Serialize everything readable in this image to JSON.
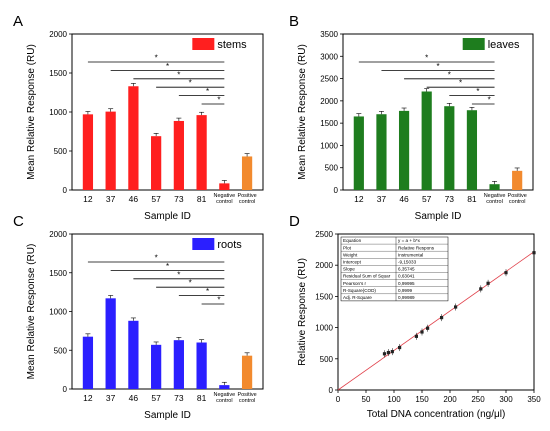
{
  "chart_data": [
    {
      "panel": "A",
      "type": "bar",
      "legend_label": "stems",
      "legend_color": "#ff1f1f",
      "bar_color": "#ff1f1f",
      "control_color": "#f28a2e",
      "categories": [
        "12",
        "37",
        "46",
        "57",
        "73",
        "81",
        "Negative control",
        "Positive control"
      ],
      "values": [
        970,
        1005,
        1330,
        690,
        885,
        960,
        85,
        430
      ],
      "ylim": [
        0,
        2000
      ],
      "yticks": [
        0,
        500,
        1000,
        1500,
        2000
      ],
      "xlabel": "Sample ID",
      "ylabel": "Mean Relative Response (RU)",
      "significance_brackets": [
        {
          "from": "12",
          "to": "Negative control",
          "label": "*"
        },
        {
          "from": "37",
          "to": "Negative control",
          "label": "*"
        },
        {
          "from": "46",
          "to": "Negative control",
          "label": "*"
        },
        {
          "from": "57",
          "to": "Negative control",
          "label": "*"
        },
        {
          "from": "73",
          "to": "Negative control",
          "label": "*"
        },
        {
          "from": "81",
          "to": "Negative control",
          "label": "*"
        }
      ]
    },
    {
      "panel": "B",
      "type": "bar",
      "legend_label": "leaves",
      "legend_color": "#1e7d1e",
      "bar_color": "#1e7d1e",
      "control_color": "#f28a2e",
      "categories": [
        "12",
        "37",
        "46",
        "57",
        "73",
        "81",
        "Negative control",
        "Positive control"
      ],
      "values": [
        1650,
        1700,
        1775,
        2210,
        1880,
        1790,
        130,
        430
      ],
      "ylim": [
        0,
        3500
      ],
      "yticks": [
        0,
        500,
        1000,
        1500,
        2000,
        2500,
        3000,
        3500
      ],
      "xlabel": "Sample ID",
      "ylabel": "Mean Relative Response (RU)",
      "significance_brackets": [
        {
          "from": "12",
          "to": "Negative control",
          "label": "*"
        },
        {
          "from": "37",
          "to": "Negative control",
          "label": "*"
        },
        {
          "from": "46",
          "to": "Negative control",
          "label": "*"
        },
        {
          "from": "57",
          "to": "Negative control",
          "label": "*"
        },
        {
          "from": "73",
          "to": "Negative control",
          "label": "*"
        },
        {
          "from": "81",
          "to": "Negative control",
          "label": "*"
        }
      ]
    },
    {
      "panel": "C",
      "type": "bar",
      "legend_label": "roots",
      "legend_color": "#2b1fff",
      "bar_color": "#2b1fff",
      "control_color": "#f28a2e",
      "categories": [
        "12",
        "37",
        "46",
        "57",
        "73",
        "81",
        "Negative control",
        "Positive control"
      ],
      "values": [
        675,
        1170,
        880,
        570,
        630,
        600,
        50,
        430
      ],
      "ylim": [
        0,
        2000
      ],
      "yticks": [
        0,
        500,
        1000,
        1500,
        2000
      ],
      "xlabel": "Sample ID",
      "ylabel": "Mean Relative Response (RU)",
      "significance_brackets": [
        {
          "from": "12",
          "to": "Negative control",
          "label": "*"
        },
        {
          "from": "37",
          "to": "Negative control",
          "label": "*"
        },
        {
          "from": "46",
          "to": "Negative control",
          "label": "*"
        },
        {
          "from": "57",
          "to": "Negative control",
          "label": "*"
        },
        {
          "from": "73",
          "to": "Negative control",
          "label": "*"
        },
        {
          "from": "81",
          "to": "Negative control",
          "label": "*"
        }
      ]
    },
    {
      "panel": "D",
      "type": "scatter",
      "xlabel": "Total DNA concentration (ng/μl)",
      "ylabel": "Relative Response (RU)",
      "xlim": [
        0,
        350
      ],
      "ylim": [
        0,
        2500
      ],
      "xticks": [
        0,
        50,
        100,
        150,
        200,
        250,
        300,
        350
      ],
      "yticks": [
        0,
        500,
        1000,
        1500,
        2000,
        2500
      ],
      "points": [
        {
          "x": 83,
          "y": 580
        },
        {
          "x": 90,
          "y": 600
        },
        {
          "x": 97,
          "y": 615
        },
        {
          "x": 110,
          "y": 680
        },
        {
          "x": 140,
          "y": 860
        },
        {
          "x": 150,
          "y": 930
        },
        {
          "x": 160,
          "y": 990
        },
        {
          "x": 185,
          "y": 1160
        },
        {
          "x": 210,
          "y": 1330
        },
        {
          "x": 255,
          "y": 1620
        },
        {
          "x": 268,
          "y": 1710
        },
        {
          "x": 300,
          "y": 1880
        },
        {
          "x": 350,
          "y": 2200
        }
      ],
      "fit_line": {
        "slope": 6.35745,
        "intercept": -9.15033,
        "x_range": [
          0,
          350
        ]
      },
      "fit_table": [
        [
          "Equation",
          "y = a + b*x"
        ],
        [
          "Plot",
          "Relative Respons"
        ],
        [
          "Weight",
          "Instrumental"
        ],
        [
          "Intercept",
          "-9,15033"
        ],
        [
          "Slope",
          "6,35745"
        ],
        [
          "Residual Sum of Squar",
          "0,63041"
        ],
        [
          "Pearson's r",
          "0,99995"
        ],
        [
          "R-Square(COD)",
          "0,9999"
        ],
        [
          "Adj. R-Square",
          "0,99989"
        ]
      ]
    }
  ]
}
